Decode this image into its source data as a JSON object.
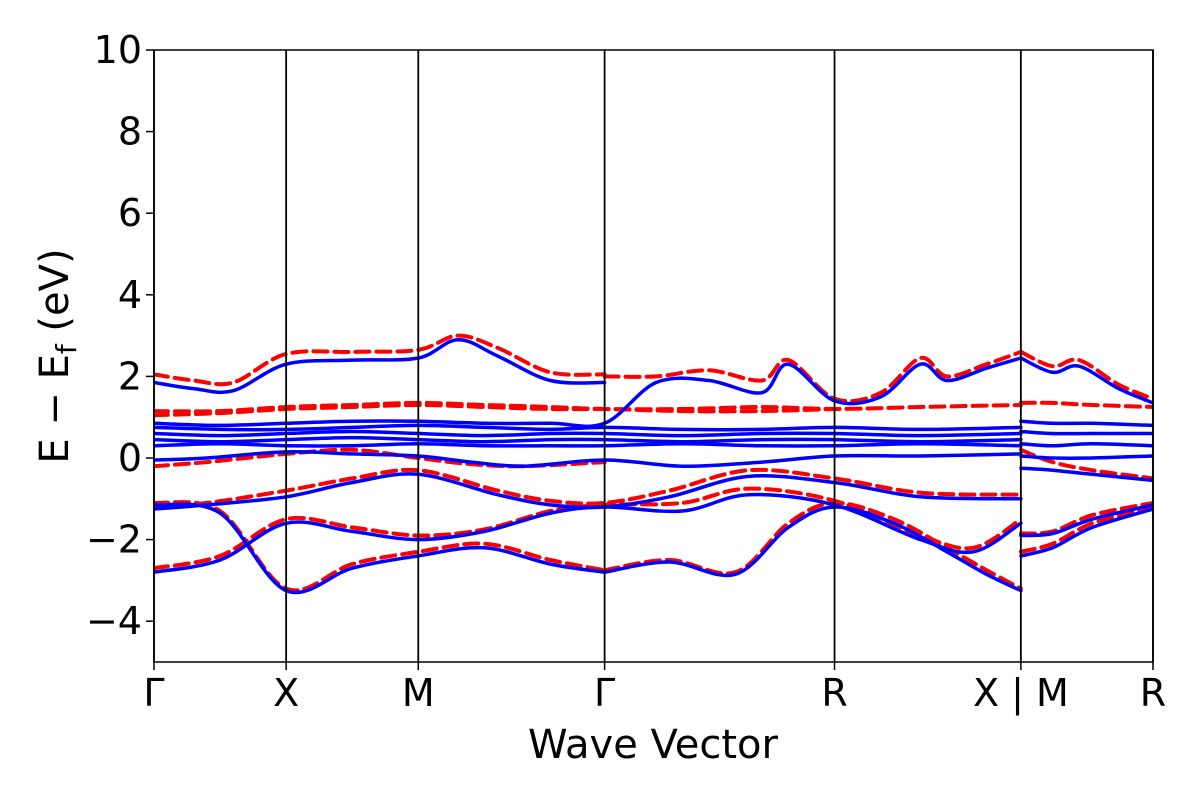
{
  "chart_data": {
    "type": "line",
    "xlabel": "Wave Vector",
    "ylabel": "E − E",
    "ylabel_sub": "f",
    "ylabel_unit": " (eV)",
    "ylim": [
      -5,
      10
    ],
    "yticks": [
      -4,
      -2,
      0,
      2,
      4,
      6,
      8,
      10
    ],
    "ytick_labels": [
      "−4",
      "−2",
      "0",
      "2",
      "4",
      "6",
      "8",
      "10"
    ],
    "xlim": [
      0,
      7.56
    ],
    "kpoints": [
      {
        "label": "Γ",
        "x": 0.0
      },
      {
        "label": "X",
        "x": 1.0
      },
      {
        "label": "M",
        "x": 2.0
      },
      {
        "label": "Γ",
        "x": 3.41
      },
      {
        "label": "R",
        "x": 5.15
      },
      {
        "label": "X | M",
        "x": 6.56
      },
      {
        "label": "R",
        "x": 7.56
      }
    ],
    "series_styles": [
      {
        "key": "dashed",
        "color": "#ff0000",
        "dash": "dashed"
      },
      {
        "key": "solid",
        "color": "#0000ff",
        "dash": "solid"
      }
    ],
    "bands_dashed": [
      {
        "x": [
          0,
          0.3,
          0.6,
          1.0,
          1.5,
          2.0,
          2.3,
          2.6,
          3.0,
          3.41
        ],
        "y": [
          2.05,
          1.9,
          1.85,
          2.55,
          2.6,
          2.65,
          3.0,
          2.7,
          2.1,
          2.05
        ]
      },
      {
        "x": [
          0,
          0.5,
          1.0,
          1.5,
          2.0,
          2.5,
          3.0,
          3.41,
          4.0,
          4.6,
          5.15
        ],
        "y": [
          1.05,
          1.1,
          1.2,
          1.25,
          1.3,
          1.25,
          1.2,
          1.2,
          1.15,
          1.15,
          1.2
        ]
      },
      {
        "x": [
          0,
          0.5,
          1.0,
          1.5,
          2.0,
          2.5,
          3.0,
          3.41,
          4.0,
          4.6,
          5.15,
          5.8,
          6.56
        ],
        "y": [
          1.15,
          1.15,
          1.25,
          1.3,
          1.35,
          1.3,
          1.25,
          1.2,
          1.2,
          1.25,
          1.2,
          1.25,
          1.3
        ]
      },
      {
        "x": [
          3.41,
          3.8,
          4.2,
          4.6,
          4.8,
          5.15,
          5.5,
          5.8,
          6.0,
          6.3,
          6.56
        ],
        "y": [
          2.0,
          2.0,
          2.15,
          1.9,
          2.4,
          1.45,
          1.6,
          2.45,
          2.0,
          2.3,
          2.6
        ]
      },
      {
        "x": [
          6.56,
          6.8,
          7.0,
          7.3,
          7.56
        ],
        "y": [
          2.6,
          2.25,
          2.4,
          1.8,
          1.45
        ]
      },
      {
        "x": [
          6.56,
          6.8,
          7.1,
          7.56
        ],
        "y": [
          1.35,
          1.35,
          1.3,
          1.25
        ]
      },
      {
        "x": [
          0,
          0.4,
          1.0,
          1.5,
          2.0,
          2.4,
          2.8,
          3.41
        ],
        "y": [
          -0.2,
          -0.1,
          0.1,
          0.2,
          0.0,
          -0.15,
          -0.2,
          -0.1
        ]
      },
      {
        "x": [
          0,
          0.4,
          1.0,
          1.5,
          2.0,
          2.6,
          3.0,
          3.41,
          3.9,
          4.5,
          5.15,
          5.8,
          6.56
        ],
        "y": [
          -1.2,
          -1.1,
          -0.8,
          -0.5,
          -0.3,
          -0.8,
          -1.05,
          -1.1,
          -0.8,
          -0.3,
          -0.5,
          -0.85,
          -0.9
        ]
      },
      {
        "x": [
          0,
          0.5,
          1.0,
          1.5,
          2.0,
          2.5,
          3.0,
          3.41,
          4.0,
          4.5,
          5.15,
          5.8,
          6.2,
          6.56
        ],
        "y": [
          -2.7,
          -2.4,
          -1.5,
          -1.7,
          -1.9,
          -1.75,
          -1.3,
          -1.15,
          -1.1,
          -0.75,
          -1.05,
          -1.9,
          -2.2,
          -1.5
        ]
      },
      {
        "x": [
          0,
          0.5,
          1.0,
          1.5,
          2.0,
          2.5,
          3.0,
          3.41
        ],
        "y": [
          -1.1,
          -1.3,
          -3.2,
          -2.6,
          -2.3,
          -2.1,
          -2.5,
          -2.75
        ]
      },
      {
        "x": [
          3.41,
          3.9,
          4.4,
          4.8,
          5.15,
          5.6,
          6.0,
          6.3,
          6.56
        ],
        "y": [
          -2.75,
          -2.5,
          -2.8,
          -1.6,
          -1.1,
          -1.5,
          -2.2,
          -2.75,
          -3.2
        ]
      },
      {
        "x": [
          6.56,
          6.8,
          7.1,
          7.56
        ],
        "y": [
          -1.85,
          -1.8,
          -1.4,
          -1.1
        ]
      },
      {
        "x": [
          6.56,
          6.8,
          7.1,
          7.56
        ],
        "y": [
          -2.3,
          -2.1,
          -1.6,
          -1.2
        ]
      },
      {
        "x": [
          6.56,
          6.8,
          7.1,
          7.56
        ],
        "y": [
          0.2,
          -0.1,
          -0.3,
          -0.5
        ]
      }
    ],
    "bands_solid": [
      {
        "x": [
          0,
          0.3,
          0.6,
          1.0,
          1.5,
          2.0,
          2.3,
          2.6,
          3.0,
          3.41
        ],
        "y": [
          1.85,
          1.7,
          1.65,
          2.3,
          2.4,
          2.45,
          2.9,
          2.5,
          1.9,
          1.85
        ]
      },
      {
        "x": [
          0,
          0.5,
          1.0,
          1.5,
          2.0,
          2.5,
          3.0,
          3.41,
          3.8,
          4.2,
          4.6,
          4.8,
          5.15,
          5.5,
          5.8,
          6.0,
          6.3,
          6.56
        ],
        "y": [
          0.85,
          0.8,
          0.85,
          0.9,
          0.9,
          0.85,
          0.85,
          0.85,
          1.85,
          1.9,
          1.6,
          2.3,
          1.4,
          1.5,
          2.3,
          1.9,
          2.2,
          2.45
        ]
      },
      {
        "x": [
          0,
          0.5,
          1.0,
          1.5,
          2.0,
          2.5,
          3.0,
          3.41,
          4.0,
          4.6,
          5.15,
          5.8,
          6.56
        ],
        "y": [
          0.75,
          0.7,
          0.7,
          0.75,
          0.8,
          0.75,
          0.7,
          0.75,
          0.7,
          0.7,
          0.75,
          0.7,
          0.75
        ]
      },
      {
        "x": [
          0,
          0.5,
          1.0,
          1.5,
          2.0,
          2.5,
          3.0,
          3.41,
          4.0,
          4.6,
          5.15,
          5.8,
          6.56
        ],
        "y": [
          0.6,
          0.55,
          0.6,
          0.65,
          0.6,
          0.55,
          0.6,
          0.6,
          0.55,
          0.6,
          0.6,
          0.55,
          0.6
        ]
      },
      {
        "x": [
          0,
          0.5,
          1.0,
          1.5,
          2.0,
          2.5,
          3.0,
          3.41,
          4.0,
          4.6,
          5.15,
          5.8,
          6.56
        ],
        "y": [
          0.45,
          0.4,
          0.45,
          0.5,
          0.45,
          0.4,
          0.45,
          0.45,
          0.4,
          0.45,
          0.45,
          0.4,
          0.45
        ]
      },
      {
        "x": [
          0,
          0.5,
          1.0,
          1.5,
          2.0,
          2.5,
          3.0,
          3.41,
          4.0,
          4.6,
          5.15,
          5.8,
          6.56
        ],
        "y": [
          0.3,
          0.35,
          0.3,
          0.3,
          0.35,
          0.3,
          0.3,
          0.3,
          0.35,
          0.3,
          0.3,
          0.35,
          0.3
        ]
      },
      {
        "x": [
          0,
          0.4,
          1.0,
          1.5,
          2.0,
          2.4,
          2.8,
          3.41,
          4.0,
          4.6,
          5.15,
          5.8,
          6.56
        ],
        "y": [
          -0.05,
          0.0,
          0.15,
          0.1,
          0.05,
          -0.1,
          -0.2,
          -0.05,
          -0.2,
          -0.1,
          0.05,
          0.05,
          0.1
        ]
      },
      {
        "x": [
          0,
          0.4,
          1.0,
          1.5,
          2.0,
          2.6,
          3.0,
          3.41,
          3.9,
          4.5,
          5.15,
          5.8,
          6.56
        ],
        "y": [
          -1.25,
          -1.15,
          -0.95,
          -0.6,
          -0.4,
          -0.9,
          -1.15,
          -1.2,
          -0.95,
          -0.45,
          -0.6,
          -0.95,
          -1.0
        ]
      },
      {
        "x": [
          0,
          0.5,
          1.0,
          1.5,
          2.0,
          2.5,
          3.0,
          3.41,
          4.0,
          4.5,
          5.15,
          5.8,
          6.2,
          6.56
        ],
        "y": [
          -2.8,
          -2.5,
          -1.6,
          -1.8,
          -2.0,
          -1.8,
          -1.35,
          -1.2,
          -1.3,
          -0.9,
          -1.15,
          -2.0,
          -2.3,
          -1.6
        ]
      },
      {
        "x": [
          0,
          0.5,
          1.0,
          1.5,
          2.0,
          2.5,
          3.0,
          3.41
        ],
        "y": [
          -1.15,
          -1.35,
          -3.25,
          -2.7,
          -2.4,
          -2.2,
          -2.6,
          -2.8
        ]
      },
      {
        "x": [
          3.41,
          3.9,
          4.4,
          4.8,
          5.15,
          5.6,
          6.0,
          6.3,
          6.56
        ],
        "y": [
          -2.8,
          -2.55,
          -2.85,
          -1.7,
          -1.2,
          -1.6,
          -2.3,
          -2.85,
          -3.25
        ]
      },
      {
        "x": [
          6.56,
          6.8,
          7.0,
          7.3,
          7.56
        ],
        "y": [
          2.45,
          2.1,
          2.25,
          1.7,
          1.35
        ]
      },
      {
        "x": [
          6.56,
          6.8,
          7.1,
          7.56
        ],
        "y": [
          0.9,
          0.85,
          0.85,
          0.8
        ]
      },
      {
        "x": [
          6.56,
          6.8,
          7.1,
          7.56
        ],
        "y": [
          0.65,
          0.6,
          0.6,
          0.6
        ]
      },
      {
        "x": [
          6.56,
          6.8,
          7.1,
          7.56
        ],
        "y": [
          0.35,
          0.3,
          0.35,
          0.3
        ]
      },
      {
        "x": [
          6.56,
          6.8,
          7.1,
          7.56
        ],
        "y": [
          0.05,
          0.0,
          0.0,
          0.05
        ]
      },
      {
        "x": [
          6.56,
          6.8,
          7.1,
          7.56
        ],
        "y": [
          -0.25,
          -0.3,
          -0.4,
          -0.55
        ]
      },
      {
        "x": [
          6.56,
          6.8,
          7.1,
          7.56
        ],
        "y": [
          -1.9,
          -1.85,
          -1.5,
          -1.15
        ]
      },
      {
        "x": [
          6.56,
          6.8,
          7.1,
          7.56
        ],
        "y": [
          -2.4,
          -2.2,
          -1.7,
          -1.25
        ]
      }
    ]
  }
}
